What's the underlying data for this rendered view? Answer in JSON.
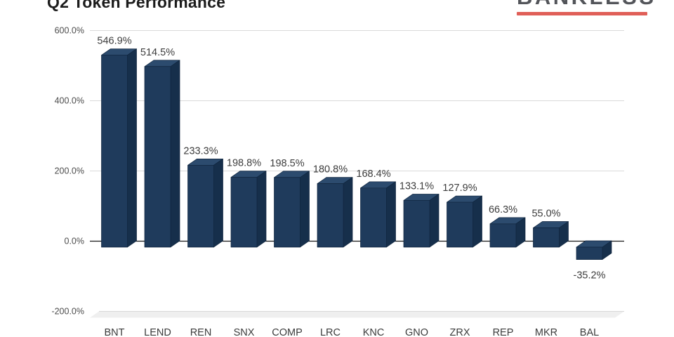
{
  "header": {
    "title": "Q2 Token Performance",
    "logo": {
      "text": "BANKLESS",
      "text_color": "#53555a",
      "underline_color": "#e05f58"
    }
  },
  "chart_data": {
    "type": "bar",
    "style": "3d-column",
    "title": "Q2 Token Performance",
    "categories": [
      "BNT",
      "LEND",
      "REN",
      "SNX",
      "COMP",
      "LRC",
      "KNC",
      "GNO",
      "ZRX",
      "REP",
      "MKR",
      "BAL"
    ],
    "values": [
      546.9,
      514.5,
      233.3,
      198.8,
      198.5,
      180.8,
      168.4,
      133.1,
      127.9,
      66.3,
      55.0,
      -35.2
    ],
    "data_labels": [
      "546.9%",
      "514.5%",
      "233.3%",
      "198.8%",
      "198.5%",
      "180.8%",
      "168.4%",
      "133.1%",
      "127.9%",
      "66.3%",
      "55.0%",
      "-35.2%"
    ],
    "xlabel": "",
    "ylabel": "",
    "y_ticks": [
      {
        "value": 600,
        "label": "600.0%"
      },
      {
        "value": 400,
        "label": "400.0%"
      },
      {
        "value": 200,
        "label": "200.0%"
      },
      {
        "value": 0,
        "label": "0.0%"
      },
      {
        "value": -200,
        "label": "-200.0%"
      }
    ],
    "ylim": [
      -200,
      600
    ],
    "grid": true,
    "legend": "none",
    "colors": {
      "bar_front": "#1f3b5c",
      "bar_top": "#2c4b6e",
      "bar_side": "#162f4b",
      "bar_edge": "#10263f",
      "gridline": "#d9d9d9",
      "zero_line": "#1a1a1a",
      "floor_fill": "#efefef",
      "floor_edge": "#d7d7d7",
      "data_label": "#3d3d3d",
      "axis_label": "#4c4c4c",
      "x_label": "#3b3b3b"
    }
  }
}
